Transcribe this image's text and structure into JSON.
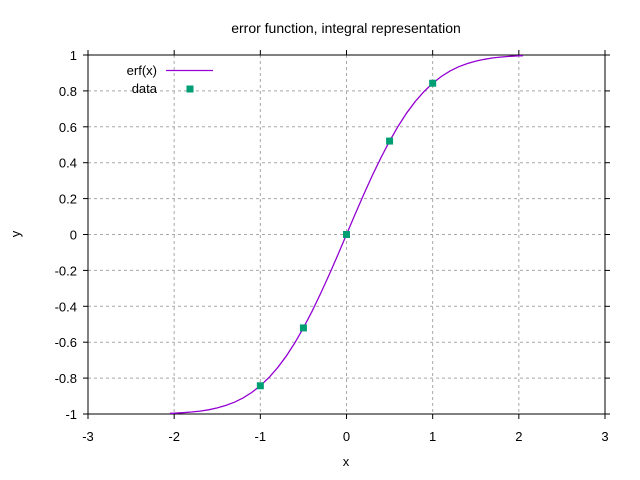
{
  "chart_data": {
    "type": "line",
    "title": "error function, integral representation",
    "xlabel": "x",
    "ylabel": "y",
    "xlim": [
      -3,
      3
    ],
    "ylim": [
      -1,
      1
    ],
    "xticks": [
      -3,
      -2,
      -1,
      0,
      1,
      2,
      3
    ],
    "xtick_labels": [
      "-3",
      "-2",
      "-1",
      "0",
      "1",
      "2",
      "3"
    ],
    "yticks": [
      1,
      0.8,
      0.6,
      0.4,
      0.2,
      0,
      -0.2,
      -0.4,
      -0.6,
      -0.8,
      -1
    ],
    "ytick_labels": [
      "1",
      "0.8",
      "0.6",
      "0.4",
      "0.2",
      "0",
      "-0.2",
      "-0.4",
      "-0.6",
      "-0.8",
      "-1"
    ],
    "grid": true,
    "grid_style": "dashed",
    "grid_color": "#a8a8a8",
    "tick_direction": "out",
    "border_color": "#000000",
    "background_color": "#ffffff",
    "legend_position": "top-left-inside",
    "series": [
      {
        "name": "erf(x)",
        "type": "line",
        "color": "#9400d3",
        "x": [
          -2.05,
          -2.0,
          -1.9,
          -1.8,
          -1.7,
          -1.6,
          -1.5,
          -1.4,
          -1.3,
          -1.2,
          -1.1,
          -1.0,
          -0.9,
          -0.8,
          -0.7,
          -0.6,
          -0.5,
          -0.4,
          -0.3,
          -0.2,
          -0.1,
          0,
          0.1,
          0.2,
          0.3,
          0.4,
          0.5,
          0.6,
          0.7,
          0.8,
          0.9,
          1.0,
          1.1,
          1.2,
          1.3,
          1.4,
          1.5,
          1.6,
          1.7,
          1.8,
          1.9,
          2.0,
          2.05
        ],
        "y": [
          -0.9963,
          -0.9953,
          -0.9928,
          -0.9891,
          -0.9838,
          -0.9764,
          -0.9661,
          -0.9523,
          -0.934,
          -0.9103,
          -0.8802,
          -0.8427,
          -0.7969,
          -0.7421,
          -0.6778,
          -0.6039,
          -0.5205,
          -0.4284,
          -0.3286,
          -0.2227,
          -0.1125,
          0,
          0.1125,
          0.2227,
          0.3286,
          0.4284,
          0.5205,
          0.6039,
          0.6778,
          0.7421,
          0.7969,
          0.8427,
          0.8802,
          0.9103,
          0.934,
          0.9523,
          0.9661,
          0.9763,
          0.9838,
          0.9891,
          0.9928,
          0.9953,
          0.9963
        ]
      },
      {
        "name": "data",
        "type": "points",
        "marker": "filled-square",
        "color": "#009e73",
        "x": [
          -1,
          -0.5,
          0,
          0.5,
          1
        ],
        "y": [
          -0.8427,
          -0.5205,
          0,
          0.5205,
          0.8427
        ]
      }
    ]
  }
}
